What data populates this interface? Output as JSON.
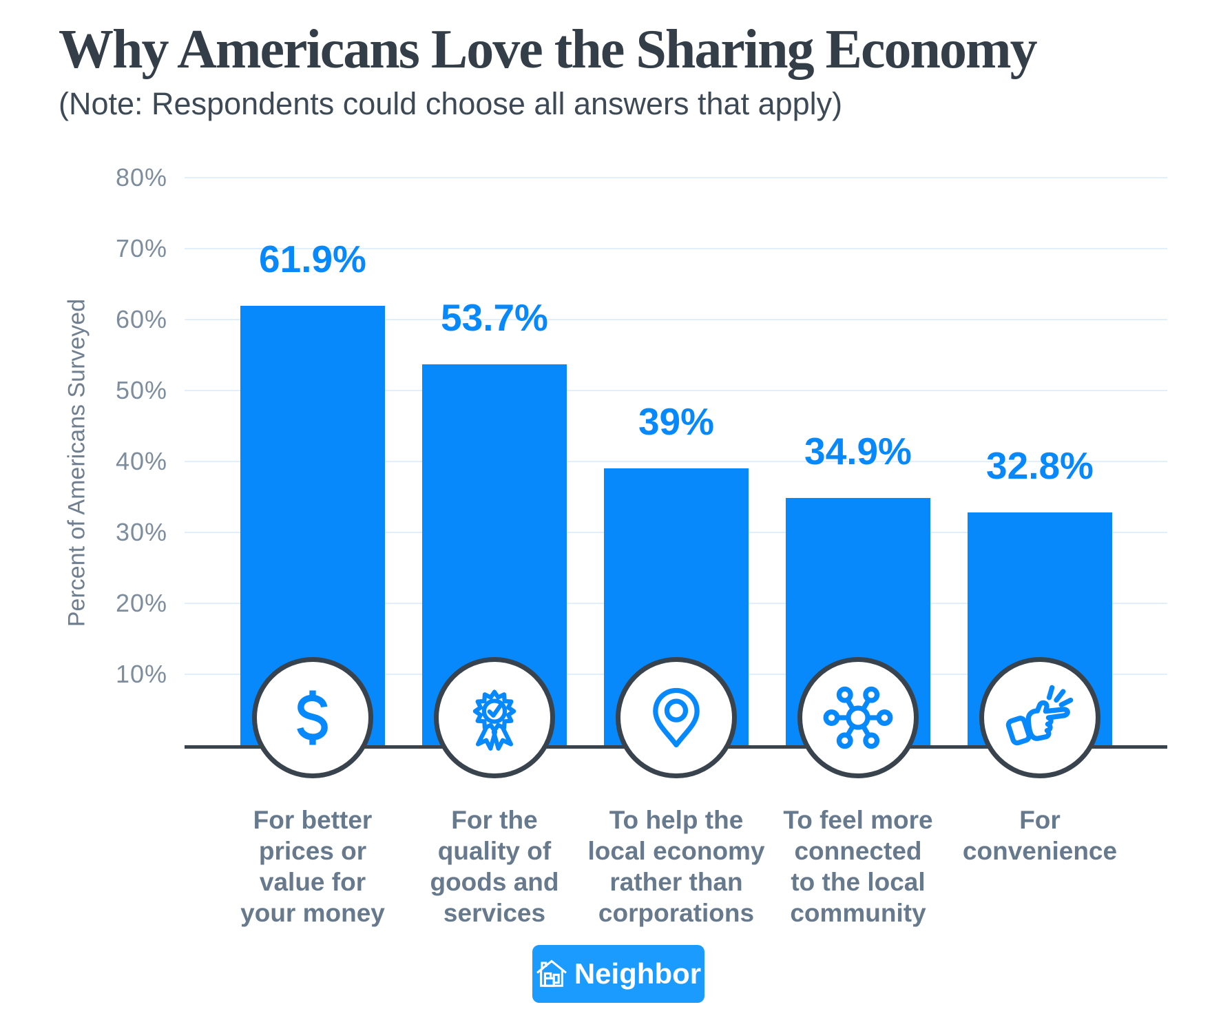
{
  "chart_data": {
    "type": "bar",
    "title": "Why Americans Love the Sharing Economy",
    "subtitle": "(Note: Respondents could choose all answers that apply)",
    "ylabel": "Percent of Americans Surveyed",
    "categories": [
      "For better\nprices or\nvalue for\nyour money",
      "For the\nquality of\ngoods and\nservices",
      "To help the\nlocal economy\nrather than\ncorporations",
      "To feel more\nconnected\nto the local\ncommunity",
      "For\nconvenience"
    ],
    "values": [
      61.9,
      53.7,
      39,
      34.9,
      32.8
    ],
    "value_labels": [
      "61.9%",
      "53.7%",
      "39%",
      "34.9%",
      "32.8%"
    ],
    "yticks": [
      {
        "label": "80%",
        "value": 80
      },
      {
        "label": "70%",
        "value": 70
      },
      {
        "label": "60%",
        "value": 60
      },
      {
        "label": "50%",
        "value": 50
      },
      {
        "label": "40%",
        "value": 40
      },
      {
        "label": "30%",
        "value": 30
      },
      {
        "label": "20%",
        "value": 20
      },
      {
        "label": "10%",
        "value": 10
      }
    ],
    "ylim": [
      0,
      80
    ],
    "grid": true,
    "legend": "none",
    "bar_icons": [
      "dollar-icon",
      "award-ribbon-icon",
      "location-pin-icon",
      "network-icon",
      "snap-fingers-icon"
    ]
  },
  "footer": {
    "logo_text": "Neighbor",
    "logo_icon": "house-icon"
  },
  "colors": {
    "primary_blue": "#0889fb",
    "logo_blue": "#1b9bfe",
    "slate": "#39434e",
    "title_dark": "#333e48",
    "label_gray": "#67798c",
    "tick_gray": "#7d8d9d",
    "gridline": "#e1effc"
  }
}
